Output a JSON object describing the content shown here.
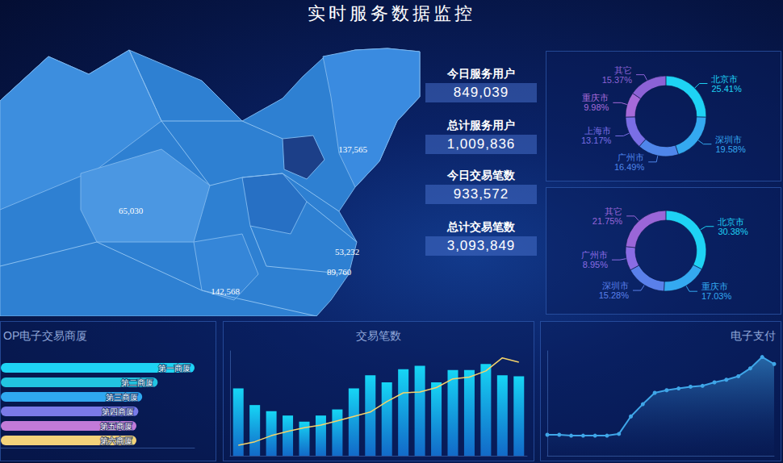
{
  "title": "实时服务数据监控",
  "map": {
    "labels": [
      "137,565",
      "65,030",
      "53,232",
      "89,760",
      "142,568"
    ]
  },
  "stats": [
    {
      "label": "今日服务用户",
      "value": "849,039"
    },
    {
      "label": "总计服务用户",
      "value": "1,009,836"
    },
    {
      "label": "今日交易笔数",
      "value": "933,572"
    },
    {
      "label": "总计交易笔数",
      "value": "3,093,849"
    }
  ],
  "chart_data": [
    {
      "type": "pie",
      "categories": [
        "北京市",
        "深圳市",
        "广州市",
        "上海市",
        "重庆市",
        "其它"
      ],
      "values": [
        25.41,
        19.58,
        16.49,
        13.17,
        9.98,
        15.37
      ],
      "value_labels": [
        "25.41%",
        "19.58%",
        "16.49%",
        "13.17%",
        "9.98%",
        "15.37%"
      ],
      "colors": [
        "#1ed3f4",
        "#34a9f0",
        "#4f86ea",
        "#7a6ee6",
        "#a66ad9",
        "#8c62d6"
      ],
      "data_labels": true
    },
    {
      "type": "pie",
      "categories": [
        "北京市",
        "重庆市",
        "深圳市",
        "广州市",
        "其它"
      ],
      "values": [
        30.38,
        17.03,
        15.28,
        8.95,
        21.75
      ],
      "value_labels": [
        "30.38%",
        "17.03%",
        "15.28%",
        "8.95%",
        "21.75%"
      ],
      "colors": [
        "#1ed3f4",
        "#34a9f0",
        "#5a80ea",
        "#8a6ce4",
        "#9a66d8"
      ],
      "data_labels": true
    },
    {
      "type": "bar",
      "title": "OP电子交易商厦",
      "orientation": "horizontal",
      "categories": [
        "第一商厦",
        "第二商厦",
        "第三商厦",
        "第四商厦",
        "第五商厦",
        "第六商厦"
      ],
      "values": [
        100,
        81,
        73,
        71,
        70,
        70
      ],
      "colors": [
        "#1ed3f4",
        "#22c4e0",
        "#2fa8f0",
        "#7a7ae8",
        "#c27ad8",
        "#f3d27a"
      ],
      "xlim": [
        0,
        100
      ],
      "tick_labels": false,
      "grid": false
    },
    {
      "type": "bar",
      "title": "交易笔数",
      "categories": [
        null,
        null,
        null,
        null,
        null,
        null,
        null,
        null,
        null,
        null,
        null,
        null,
        null,
        null,
        null,
        null,
        null,
        null
      ],
      "series": [
        {
          "type": "bar",
          "color": "#16d6f5",
          "values": [
            77,
            58,
            51,
            46,
            39,
            46,
            53,
            77,
            92,
            84,
            99,
            103,
            84,
            98,
            98,
            105,
            92,
            91
          ]
        },
        {
          "type": "line",
          "color": "#f5d36a",
          "marker": "none",
          "values": [
            12,
            16,
            23,
            28,
            32,
            35,
            40,
            45,
            50,
            62,
            72,
            73,
            78,
            88,
            90,
            97,
            112,
            107
          ]
        }
      ],
      "ylim": [
        0,
        120
      ],
      "tick_labels": false,
      "grid": false
    },
    {
      "type": "area",
      "title": "电子支付",
      "categories": [
        null,
        null,
        null,
        null,
        null,
        null,
        null,
        null,
        null,
        null,
        null,
        null,
        null,
        null,
        null,
        null,
        null,
        null,
        null,
        null
      ],
      "values": [
        24,
        24,
        23,
        23,
        23,
        23,
        25,
        45,
        59,
        72,
        75,
        77,
        79,
        80,
        84,
        87,
        91,
        100,
        113,
        105
      ],
      "color": "#3fa6e8",
      "marker": "circle",
      "ylim": [
        0,
        120
      ],
      "tick_labels": false,
      "grid": false
    }
  ]
}
